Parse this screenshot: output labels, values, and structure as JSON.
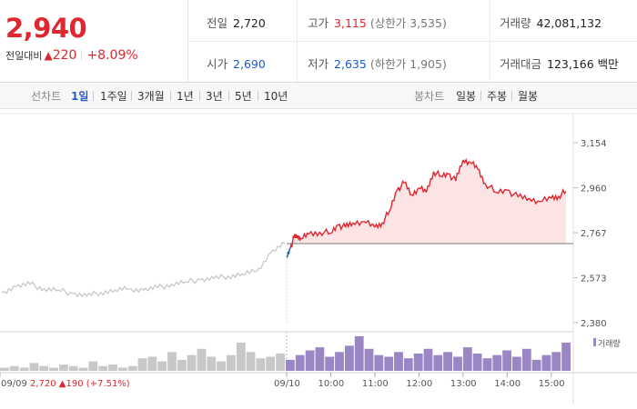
{
  "summary": {
    "price": "2,940",
    "change_label": "전일대비",
    "change_arrow": "▲",
    "change_value": "220",
    "change_pct": "+8.09%",
    "prev_close": {
      "label": "전일",
      "value": "2,720"
    },
    "open": {
      "label": "시가",
      "value": "2,690"
    },
    "high": {
      "label": "고가",
      "value": "3,115",
      "sub": "(상한가 3,535)"
    },
    "low": {
      "label": "저가",
      "value": "2,635",
      "sub": "(하한가 1,905)"
    },
    "volume": {
      "label": "거래량",
      "value": "42,081,132"
    },
    "amount": {
      "label": "거래대금",
      "value": "123,166 백만"
    }
  },
  "tabs": {
    "line_label": "선차트",
    "line_items": [
      "1일",
      "1주일",
      "3개월",
      "1년",
      "3년",
      "5년",
      "10년"
    ],
    "active": "1일",
    "candle_label": "봉차트",
    "candle_items": [
      "일봉",
      "주봉",
      "월봉"
    ]
  },
  "colors": {
    "up": "#e0262f",
    "down": "#1a59c9",
    "prev_day": "#c8c8c8",
    "volume": "#9a86c4"
  },
  "chart_data": {
    "type": "line",
    "y_ticks": [
      "3,154",
      "2,960",
      "2,767",
      "2,573",
      "2,380"
    ],
    "ylim": [
      2380,
      3154
    ],
    "reference_price": 2720,
    "x_tick_labels": [
      "09/09",
      "09/10",
      "10:00",
      "11:00",
      "12:00",
      "13:00",
      "14:00",
      "15:00"
    ],
    "prev_day_summary": {
      "date": "09/09",
      "close": "2,720",
      "arrow": "▲",
      "change": "190",
      "pct": "(+7.51%)"
    },
    "volume_legend": "거래량",
    "series": [
      {
        "role": "prev-day",
        "x": [
          0.0,
          0.05,
          0.1,
          0.15,
          0.2,
          0.25,
          0.3,
          0.35,
          0.4,
          0.45,
          0.5,
          0.55,
          0.6,
          0.65,
          0.7,
          0.75,
          0.8,
          0.85,
          0.9,
          0.95,
          1.0
        ],
        "values": [
          2510,
          2535,
          2545,
          2525,
          2520,
          2505,
          2495,
          2510,
          2520,
          2525,
          2520,
          2530,
          2545,
          2555,
          2565,
          2570,
          2580,
          2590,
          2600,
          2680,
          2720
        ]
      },
      {
        "role": "today",
        "x": [
          "09:00",
          "09:05",
          "09:10",
          "09:15",
          "09:20",
          "09:30",
          "09:45",
          "10:00",
          "10:10",
          "10:20",
          "10:30",
          "10:45",
          "11:00",
          "11:10",
          "11:20",
          "11:30",
          "11:40",
          "11:50",
          "12:00",
          "12:10",
          "12:20",
          "12:30",
          "12:40",
          "12:50",
          "13:00",
          "13:10",
          "13:20",
          "13:30",
          "13:45",
          "14:00",
          "14:15",
          "14:30",
          "14:45",
          "15:00",
          "15:10",
          "15:20"
        ],
        "values": [
          2660,
          2700,
          2745,
          2755,
          2740,
          2760,
          2770,
          2765,
          2800,
          2790,
          2810,
          2815,
          2790,
          2810,
          2860,
          2950,
          2980,
          2930,
          2960,
          2940,
          3030,
          3010,
          3020,
          2990,
          3080,
          3070,
          3040,
          2980,
          2940,
          2950,
          2920,
          2915,
          2900,
          2915,
          2925,
          2945
        ]
      }
    ],
    "volume": [
      2,
      3,
      2,
      5,
      3,
      2,
      4,
      3,
      2,
      6,
      3,
      4,
      2,
      3,
      8,
      9,
      6,
      12,
      7,
      10,
      14,
      9,
      6,
      10,
      18,
      12,
      8,
      9,
      11,
      7,
      10,
      13,
      15,
      9,
      12,
      16,
      22,
      14,
      10,
      9,
      12,
      8,
      11,
      14,
      10,
      12,
      9,
      15,
      11,
      8,
      10,
      13,
      9,
      14,
      7,
      10,
      12,
      18
    ]
  }
}
